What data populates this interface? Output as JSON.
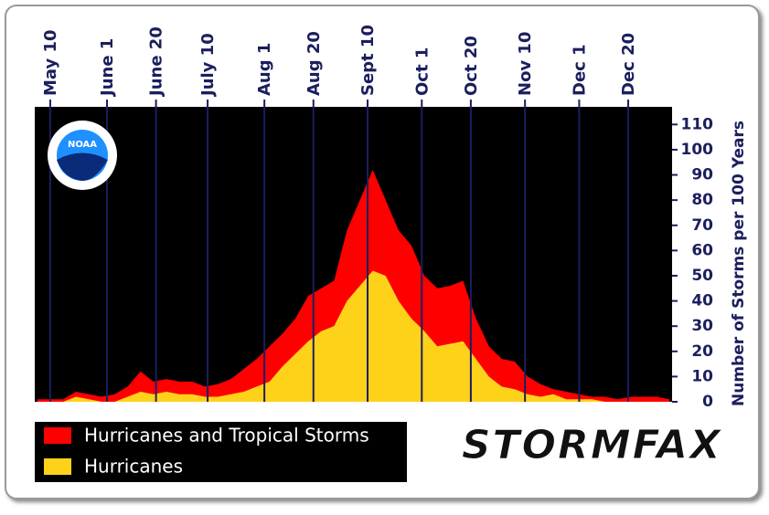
{
  "chart_data": {
    "type": "area",
    "y_label": "Number of Storms per 100 Years",
    "legend": "bottom-left",
    "logo_text": "NOAA",
    "brand": "STORMFAX",
    "xlim": [
      124,
      371
    ],
    "ylim": [
      0,
      117
    ],
    "xticks": [
      {
        "value": 130,
        "label": "May 10"
      },
      {
        "value": 152,
        "label": "June 1"
      },
      {
        "value": 171,
        "label": "June 20"
      },
      {
        "value": 191,
        "label": "July 10"
      },
      {
        "value": 213,
        "label": "Aug 1"
      },
      {
        "value": 232,
        "label": "Aug 20"
      },
      {
        "value": 253,
        "label": "Sept 10"
      },
      {
        "value": 274,
        "label": "Oct 1"
      },
      {
        "value": 293,
        "label": "Oct 20"
      },
      {
        "value": 314,
        "label": "Nov 10"
      },
      {
        "value": 335,
        "label": "Dec 1"
      },
      {
        "value": 354,
        "label": "Dec 20"
      }
    ],
    "yticks": [
      0,
      10,
      20,
      30,
      40,
      50,
      60,
      70,
      80,
      90,
      100,
      110
    ],
    "x": [
      125,
      130,
      135,
      140,
      145,
      150,
      155,
      160,
      165,
      170,
      175,
      180,
      185,
      190,
      195,
      200,
      205,
      210,
      215,
      220,
      225,
      230,
      235,
      240,
      245,
      250,
      255,
      260,
      265,
      270,
      275,
      280,
      285,
      290,
      295,
      300,
      305,
      310,
      315,
      320,
      325,
      330,
      335,
      340,
      345,
      350,
      355,
      360,
      365,
      370
    ],
    "series": [
      {
        "name": "Hurricanes and Tropical Storms",
        "color": "#ff0000",
        "values": [
          1,
          1,
          1,
          4,
          3,
          2,
          3,
          6,
          12,
          8,
          9,
          8,
          8,
          6,
          7,
          9,
          13,
          17,
          22,
          27,
          33,
          42,
          45,
          48,
          68,
          80,
          92,
          80,
          68,
          62,
          50,
          45,
          46,
          48,
          33,
          22,
          17,
          16,
          10,
          7,
          5,
          4,
          3,
          2,
          2,
          1,
          2,
          2,
          2,
          1
        ]
      },
      {
        "name": "Hurricanes",
        "color": "#ffd21a",
        "values": [
          0,
          0,
          0,
          2,
          1,
          0,
          0,
          2,
          4,
          3,
          4,
          3,
          3,
          2,
          2,
          3,
          4,
          6,
          8,
          14,
          19,
          24,
          28,
          30,
          40,
          46,
          52,
          50,
          40,
          33,
          28,
          22,
          23,
          24,
          17,
          10,
          6,
          5,
          3,
          2,
          3,
          1,
          1,
          1,
          0,
          0,
          0,
          0,
          0,
          0
        ]
      }
    ]
  }
}
